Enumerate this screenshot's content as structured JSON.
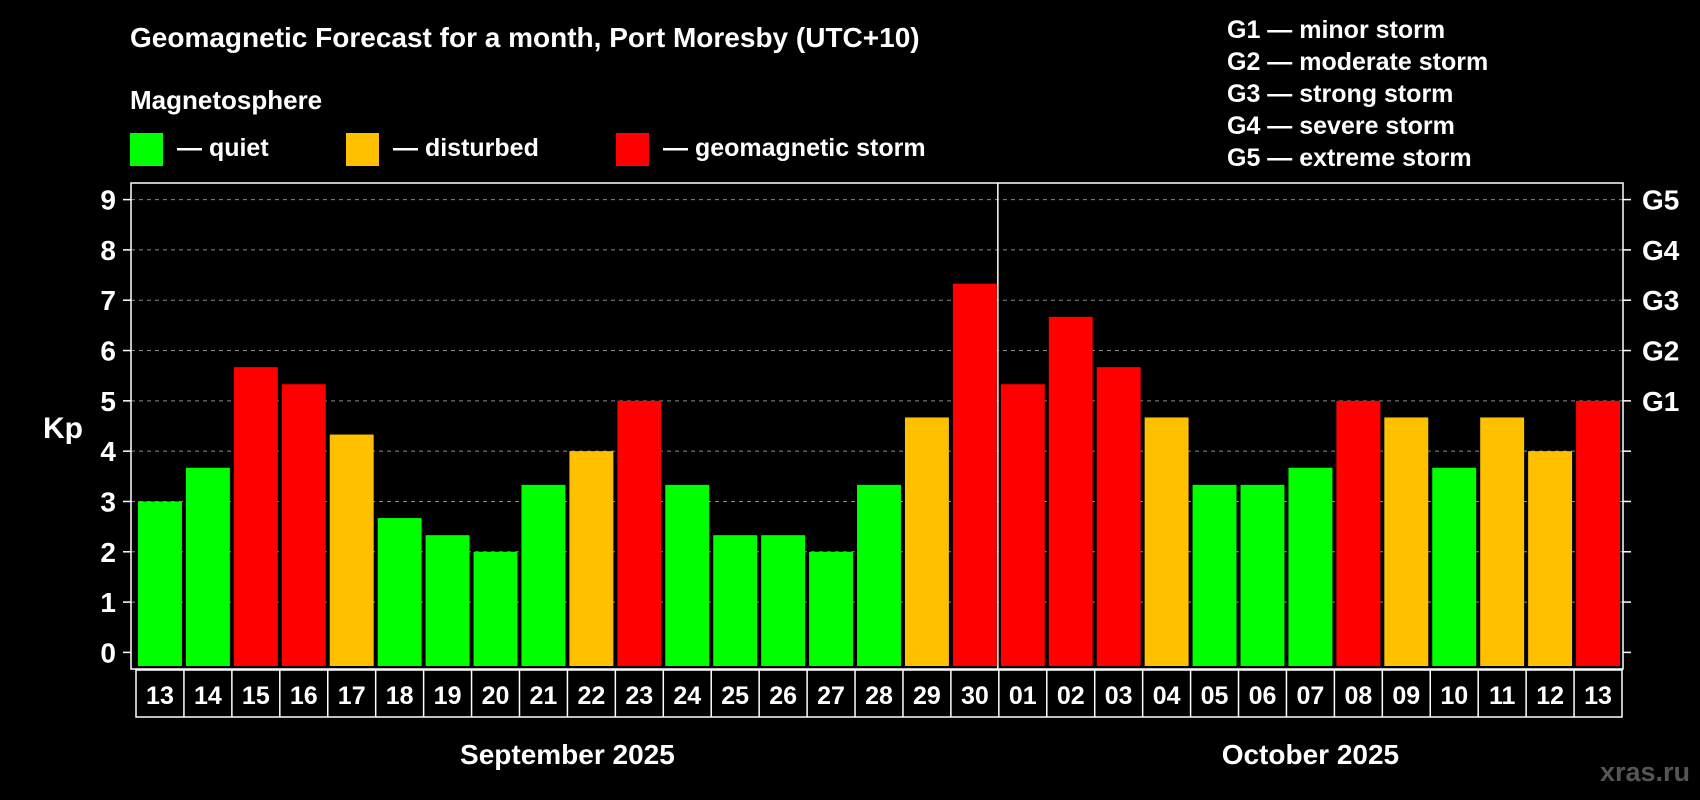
{
  "header": {
    "title": "Geomagnetic Forecast for a month, Port Moresby (UTC+10)",
    "subtitle": "Magnetosphere"
  },
  "legend": [
    {
      "label": "— quiet",
      "color": "#00ff00"
    },
    {
      "label": "— disturbed",
      "color": "#ffc000"
    },
    {
      "label": "— geomagnetic storm",
      "color": "#ff0000"
    }
  ],
  "storm_levels": [
    "G1 — minor storm",
    "G2 — moderate storm",
    "G3 — strong storm",
    "G4 — severe storm",
    "G5 — extreme storm"
  ],
  "watermark": "xras.ru",
  "chart_data": {
    "type": "bar",
    "ylabel": "Kp",
    "ylim": [
      -0.33,
      9.33
    ],
    "yticks": [
      "0",
      "1",
      "2",
      "3",
      "4",
      "5",
      "6",
      "7",
      "8",
      "9"
    ],
    "right_ticks": [
      {
        "value": 5,
        "label": "G1"
      },
      {
        "value": 6,
        "label": "G2"
      },
      {
        "value": 7,
        "label": "G3"
      },
      {
        "value": 8,
        "label": "G4"
      },
      {
        "value": 9,
        "label": "G5"
      }
    ],
    "grid": true,
    "months": [
      {
        "label": "September 2025",
        "count": 18
      },
      {
        "label": "October 2025",
        "count": 13
      }
    ],
    "categories": [
      "13",
      "14",
      "15",
      "16",
      "17",
      "18",
      "19",
      "20",
      "21",
      "22",
      "23",
      "24",
      "25",
      "26",
      "27",
      "28",
      "29",
      "30",
      "01",
      "02",
      "03",
      "04",
      "05",
      "06",
      "07",
      "08",
      "09",
      "10",
      "11",
      "12",
      "13"
    ],
    "values": [
      3,
      3.67,
      5.67,
      5.33,
      4.33,
      2.67,
      2.33,
      2,
      3.33,
      4,
      5,
      3.33,
      2.33,
      2.33,
      2,
      3.33,
      4.67,
      7.33,
      5.33,
      6.67,
      5.67,
      4.67,
      3.33,
      3.33,
      3.67,
      5,
      4.67,
      3.67,
      4.67,
      4,
      5
    ],
    "colors": {
      "quiet": "#00ff00",
      "disturbed": "#ffc000",
      "storm": "#ff0000"
    }
  }
}
